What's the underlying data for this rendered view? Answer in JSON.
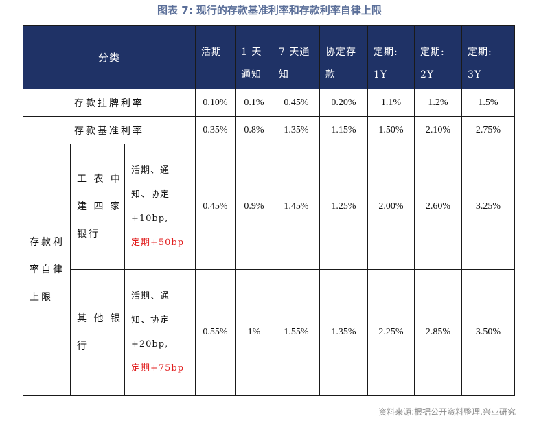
{
  "title": "图表 7:  现行的存款基准利率和存款利率自律上限",
  "header": {
    "category": "分类",
    "cols": [
      [
        "活期"
      ],
      [
        "1 天",
        "通知"
      ],
      [
        "7 天通",
        "知"
      ],
      [
        "协定存",
        "款"
      ],
      [
        "定期:",
        "1Y"
      ],
      [
        "定期:",
        "2Y"
      ],
      [
        "定期:",
        "3Y"
      ]
    ]
  },
  "rows": {
    "listed": {
      "label": "存款挂牌利率",
      "values": [
        "0.10%",
        "0.1%",
        "0.45%",
        "0.20%",
        "1.1%",
        "1.2%",
        "1.5%"
      ]
    },
    "benchmark": {
      "label": "存款基准利率",
      "values": [
        "0.35%",
        "0.8%",
        "1.35%",
        "1.15%",
        "1.50%",
        "2.10%",
        "2.75%"
      ]
    }
  },
  "selfreg": {
    "label": [
      "存款利",
      "率自律",
      "上限"
    ],
    "big4": {
      "bank": [
        "工 农 中",
        "建 四 家",
        "银行"
      ],
      "cond": [
        "活期、通",
        "知、协定",
        "+10bp,"
      ],
      "cond_red": "定期+50bp",
      "values": [
        "0.45%",
        "0.9%",
        "1.45%",
        "1.25%",
        "2.00%",
        "2.60%",
        "3.25%"
      ]
    },
    "other": {
      "bank": [
        "其 他 银",
        "行"
      ],
      "cond": [
        "活期、通",
        "知、协定",
        "+20bp,"
      ],
      "cond_red": "定期+75bp",
      "values": [
        "0.55%",
        "1%",
        "1.55%",
        "1.35%",
        "2.25%",
        "2.85%",
        "3.50%"
      ]
    }
  },
  "footer": "资料来源:根据公开资料整理,兴业研究"
}
